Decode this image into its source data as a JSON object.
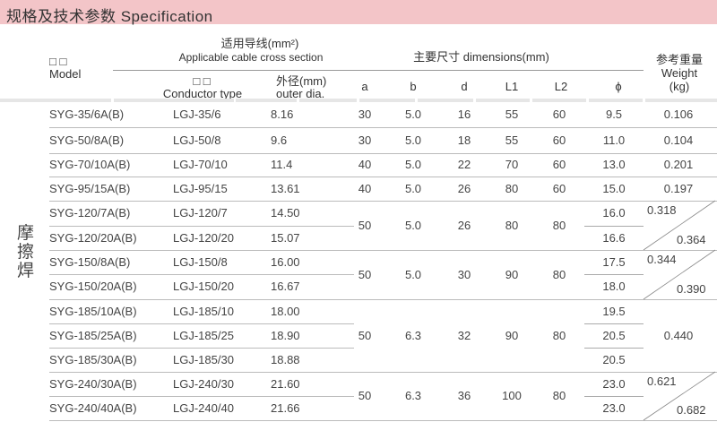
{
  "title": "规格及技术参数 Specification",
  "header": {
    "model_cn": "□ □",
    "model_en": "Model",
    "cable_cn": "适用导线(mm²)",
    "cable_en": "Applicable cable cross section",
    "conductor_cn": "□ □",
    "conductor_en": "Conductor type",
    "outer_cn": "外径(mm)",
    "outer_en": "outer dia.",
    "dimensions": "主要尺寸  dimensions(mm)",
    "a": "a",
    "b": "b",
    "d": "d",
    "L1": "L1",
    "L2": "L2",
    "phi": "ϕ",
    "weight_cn": "参考重量",
    "weight_en": "Weight",
    "weight_unit": "(kg)"
  },
  "side_label": "摩擦焊",
  "groups": [
    {
      "a": "30",
      "b": "5.0",
      "d": "16",
      "L1": "55",
      "L2": "60",
      "weight": [
        "0.106"
      ],
      "rows": [
        {
          "model": "SYG-35/6A(B)",
          "conductor": "LGJ-35/6",
          "outer": "8.16",
          "phi": "9.5"
        }
      ]
    },
    {
      "a": "30",
      "b": "5.0",
      "d": "18",
      "L1": "55",
      "L2": "60",
      "weight": [
        "0.104"
      ],
      "rows": [
        {
          "model": "SYG-50/8A(B)",
          "conductor": "LGJ-50/8",
          "outer": "9.6",
          "phi": "11.0"
        }
      ]
    },
    {
      "a": "40",
      "b": "5.0",
      "d": "22",
      "L1": "70",
      "L2": "60",
      "weight": [
        "0.201"
      ],
      "rows": [
        {
          "model": "SYG-70/10A(B)",
          "conductor": "LGJ-70/10",
          "outer": "11.4",
          "phi": "13.0"
        }
      ]
    },
    {
      "a": "40",
      "b": "5.0",
      "d": "26",
      "L1": "80",
      "L2": "60",
      "weight": [
        "0.197"
      ],
      "rows": [
        {
          "model": "SYG-95/15A(B)",
          "conductor": "LGJ-95/15",
          "outer": "13.61",
          "phi": "15.0"
        }
      ]
    },
    {
      "a": "50",
      "b": "5.0",
      "d": "26",
      "L1": "80",
      "L2": "80",
      "weight": [
        "0.318",
        "0.364"
      ],
      "rows": [
        {
          "model": "SYG-120/7A(B)",
          "conductor": "LGJ-120/7",
          "outer": "14.50",
          "phi": "16.0"
        },
        {
          "model": "SYG-120/20A(B)",
          "conductor": "LGJ-120/20",
          "outer": "15.07",
          "phi": "16.6"
        }
      ]
    },
    {
      "a": "50",
      "b": "5.0",
      "d": "30",
      "L1": "90",
      "L2": "80",
      "weight": [
        "0.344",
        "0.390"
      ],
      "rows": [
        {
          "model": "SYG-150/8A(B)",
          "conductor": "LGJ-150/8",
          "outer": "16.00",
          "phi": "17.5"
        },
        {
          "model": "SYG-150/20A(B)",
          "conductor": "LGJ-150/20",
          "outer": "16.67",
          "phi": "18.0"
        }
      ]
    },
    {
      "a": "50",
      "b": "6.3",
      "d": "32",
      "L1": "90",
      "L2": "80",
      "weight": [
        "0.440"
      ],
      "rows": [
        {
          "model": "SYG-185/10A(B)",
          "conductor": "LGJ-185/10",
          "outer": "18.00",
          "phi": "19.5"
        },
        {
          "model": "SYG-185/25A(B)",
          "conductor": "LGJ-185/25",
          "outer": "18.90",
          "phi": "20.5"
        },
        {
          "model": "SYG-185/30A(B)",
          "conductor": "LGJ-185/30",
          "outer": "18.88",
          "phi": "20.5"
        }
      ]
    },
    {
      "a": "50",
      "b": "6.3",
      "d": "36",
      "L1": "100",
      "L2": "80",
      "weight": [
        "0.621",
        "0.682"
      ],
      "rows": [
        {
          "model": "SYG-240/30A(B)",
          "conductor": "LGJ-240/30",
          "outer": "21.60",
          "phi": "23.0"
        },
        {
          "model": "SYG-240/40A(B)",
          "conductor": "LGJ-240/40",
          "outer": "21.66",
          "phi": "23.0"
        }
      ]
    }
  ]
}
